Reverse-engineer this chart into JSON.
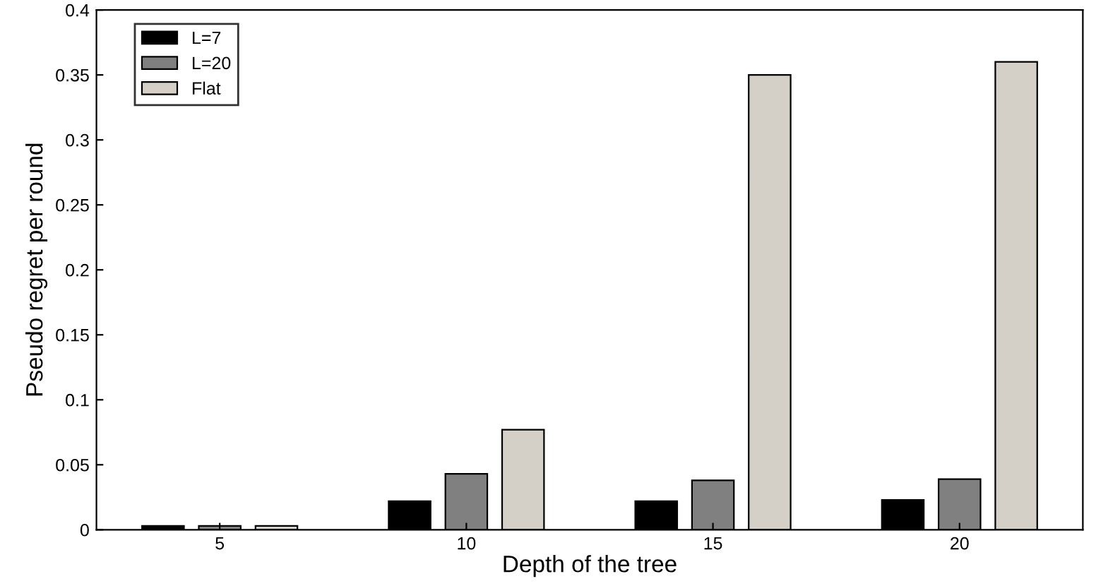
{
  "chart_data": {
    "type": "bar",
    "xlabel": "Depth of the tree",
    "ylabel": "Pseudo regret per round",
    "categories": [
      "5",
      "10",
      "15",
      "20"
    ],
    "series": [
      {
        "name": "L=7",
        "color": "#000000",
        "values": [
          0.003,
          0.022,
          0.022,
          0.023
        ]
      },
      {
        "name": "L=20",
        "color": "#808080",
        "values": [
          0.003,
          0.043,
          0.038,
          0.039
        ]
      },
      {
        "name": "Flat",
        "color": "#d4d0c8",
        "values": [
          0.003,
          0.077,
          0.35,
          0.36
        ]
      }
    ],
    "ylim": [
      0,
      0.4
    ],
    "yticks": [
      0,
      0.05,
      0.1,
      0.15,
      0.2,
      0.25,
      0.3,
      0.35,
      0.4
    ],
    "grid": false,
    "legend": "top left"
  }
}
